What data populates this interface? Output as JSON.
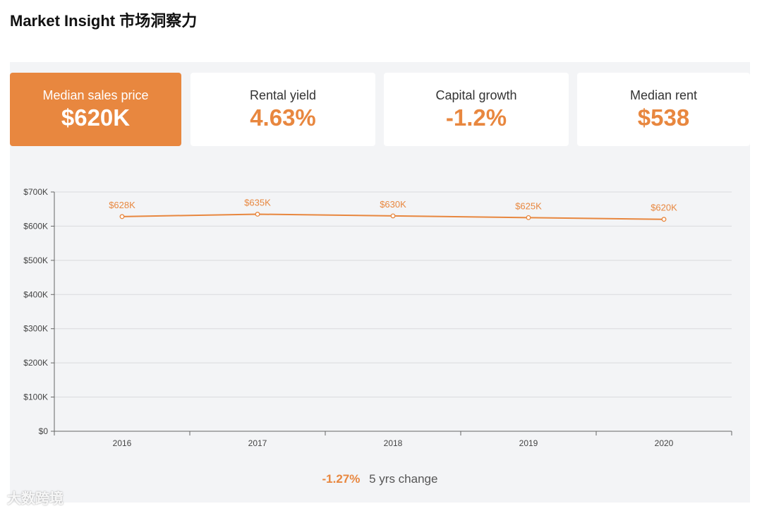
{
  "page": {
    "title": "Market Insight 市场洞察力"
  },
  "cards": [
    {
      "label": "Median sales price",
      "value": "$620K",
      "active": true
    },
    {
      "label": "Rental yield",
      "value": "4.63%",
      "active": false
    },
    {
      "label": "Capital growth",
      "value": "-1.2%",
      "active": false
    },
    {
      "label": "Median rent",
      "value": "$538",
      "active": false
    }
  ],
  "chart_data": {
    "type": "line",
    "categories": [
      "2016",
      "2017",
      "2018",
      "2019",
      "2020"
    ],
    "series": [
      {
        "values": [
          628,
          635,
          630,
          625,
          620
        ],
        "data_labels": [
          "$628K",
          "$635K",
          "$630K",
          "$625K",
          "$620K"
        ]
      }
    ],
    "y_ticks": [
      "$0",
      "$100K",
      "$200K",
      "$300K",
      "$400K",
      "$500K",
      "$600K",
      "$700K"
    ],
    "ylim": [
      0,
      700
    ],
    "y_unit": "thousand dollars",
    "grid": true,
    "line_color": "#e8873f"
  },
  "footer": {
    "change": "-1.27%",
    "label": "5 yrs change"
  },
  "watermark": {
    "text": "大数跨境"
  }
}
